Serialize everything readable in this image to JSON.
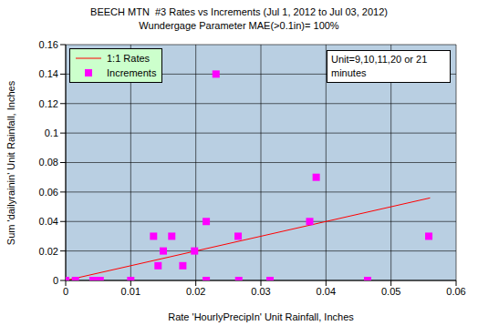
{
  "chart_data": {
    "type": "scatter",
    "title": "BEECH MTN  #3 Rates vs Increments (Jul 1, 2012 to Jul 03, 2012)",
    "subtitle": "Wundergage Parameter MAE(>0.1in)= 100%",
    "x_label": "Rate 'HourlyPrecipIn' Unit Rainfall, Inches",
    "y_label": "Sum 'dailyrainin' Unit Rainfall, Inches",
    "annotations": [
      "Unit=9,10,11,20 or 21 minutes"
    ],
    "xlim": [
      0,
      0.06
    ],
    "xticks": [
      0,
      0.01,
      0.02,
      0.03,
      0.04,
      0.05,
      0.06
    ],
    "ylim": [
      0,
      0.16
    ],
    "yticks": [
      0,
      0.02,
      0.04,
      0.06,
      0.08,
      0.1,
      0.12,
      0.14,
      0.16
    ],
    "grid": true,
    "legend": "upper left",
    "series": [
      {
        "name": "1:1 Rates",
        "type": "line",
        "color": "#ff0000",
        "x": [
          0,
          0.056
        ],
        "values": [
          0,
          0.056
        ]
      },
      {
        "name": "Increments",
        "type": "scatter",
        "color": "#ff00ff",
        "marker": "square",
        "x": [
          0,
          0.0015,
          0.0042,
          0.0053,
          0.01,
          0.0135,
          0.0142,
          0.015,
          0.0163,
          0.018,
          0.0198,
          0.0216,
          0.0216,
          0.0231,
          0.0265,
          0.0266,
          0.0314,
          0.0375,
          0.0385,
          0.0464,
          0.0558
        ],
        "values": [
          0,
          0,
          0,
          0,
          0,
          0.03,
          0.01,
          0.02,
          0.03,
          0.01,
          0.02,
          0.04,
          0,
          0.14,
          0.03,
          0,
          0,
          0.04,
          0.07,
          0,
          0.03
        ]
      }
    ]
  }
}
